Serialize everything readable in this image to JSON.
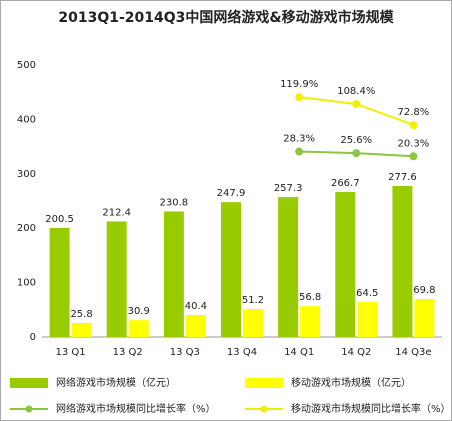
{
  "chart_data": {
    "type": "bar",
    "title": "2013Q1-2014Q3中国网络游戏&移动游戏市场规模",
    "categories": [
      "13 Q1",
      "13 Q2",
      "13 Q3",
      "13 Q4",
      "14 Q1",
      "14 Q2",
      "14 Q3e"
    ],
    "ylim": [
      0,
      500
    ],
    "yticks": [
      0,
      100,
      200,
      300,
      400,
      500
    ],
    "grid": false,
    "y2lim": [
      -284,
      174
    ],
    "legend": "bottom",
    "series": [
      {
        "name": "网络游戏市场规模（亿元）",
        "color": "#99cc00",
        "kind": "bar",
        "values": [
          200.5,
          212.4,
          230.8,
          247.9,
          257.3,
          266.7,
          277.6
        ]
      },
      {
        "name": "移动游戏市场规模（亿元）",
        "color": "#ffff00",
        "kind": "bar",
        "values": [
          25.8,
          30.9,
          40.4,
          51.2,
          56.8,
          64.5,
          69.8
        ]
      },
      {
        "name": "网络游戏市场规模同比增长率（%）",
        "color": "#8cc63f",
        "kind": "line",
        "axis": "y2",
        "values": [
          null,
          null,
          null,
          null,
          28.3,
          25.6,
          20.3
        ],
        "value_labels": [
          null,
          null,
          null,
          null,
          "28.3%",
          "25.6%",
          "20.3%"
        ]
      },
      {
        "name": "移动游戏市场规模同比增长率（%）",
        "color": "#f0f000",
        "kind": "line",
        "axis": "y2",
        "values": [
          null,
          null,
          null,
          null,
          119.9,
          108.4,
          72.8
        ],
        "value_labels": [
          null,
          null,
          null,
          null,
          "119.9%",
          "108.4%",
          "72.8%"
        ]
      }
    ]
  }
}
